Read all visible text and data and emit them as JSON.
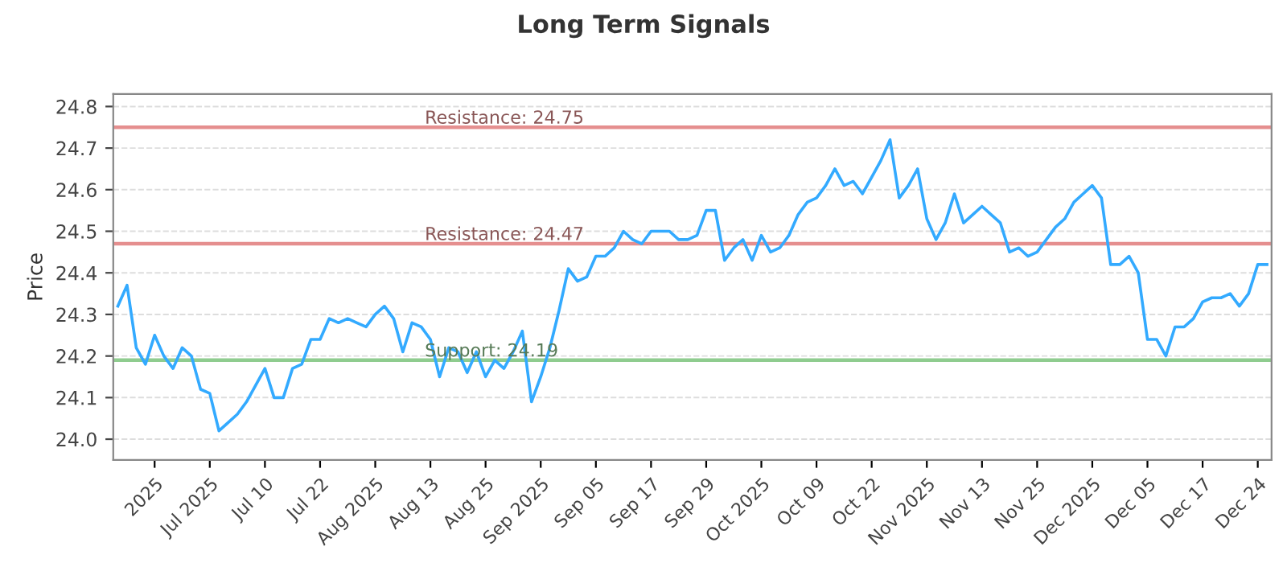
{
  "chart_data": {
    "type": "line",
    "title": "Long Term Signals",
    "ylabel": "Price",
    "categories": [
      null,
      null,
      null,
      null,
      "2025",
      null,
      null,
      null,
      null,
      null,
      "Jul 2025",
      null,
      null,
      null,
      null,
      null,
      "Jul 10",
      null,
      null,
      null,
      null,
      null,
      "Jul 22",
      null,
      null,
      null,
      null,
      null,
      "Aug 2025",
      null,
      null,
      null,
      null,
      null,
      "Aug 13",
      null,
      null,
      null,
      null,
      null,
      "Aug 25",
      null,
      null,
      null,
      null,
      null,
      "Sep 2025",
      null,
      null,
      null,
      null,
      null,
      "Sep 05",
      null,
      null,
      null,
      null,
      null,
      "Sep 17",
      null,
      null,
      null,
      null,
      null,
      "Sep 29",
      null,
      null,
      null,
      null,
      null,
      "Oct 2025",
      null,
      null,
      null,
      null,
      null,
      "Oct 09",
      null,
      null,
      null,
      null,
      null,
      "Oct 22",
      null,
      null,
      null,
      null,
      null,
      "Nov 2025",
      null,
      null,
      null,
      null,
      null,
      "Nov 13",
      null,
      null,
      null,
      null,
      null,
      "Nov 25",
      null,
      null,
      null,
      null,
      null,
      "Dec 2025",
      null,
      null,
      null,
      null,
      null,
      "Dec 05",
      null,
      null,
      null,
      null,
      null,
      "Dec 17",
      null,
      null,
      null,
      null,
      null,
      "Dec 24",
      null
    ],
    "series": [
      {
        "color": "#33aaff",
        "values": [
          24.32,
          24.37,
          24.22,
          24.18,
          24.25,
          24.2,
          24.17,
          24.22,
          24.2,
          24.12,
          24.11,
          24.02,
          24.04,
          24.06,
          24.09,
          24.13,
          24.17,
          24.1,
          24.1,
          24.17,
          24.18,
          24.24,
          24.24,
          24.29,
          24.28,
          24.29,
          24.28,
          24.27,
          24.3,
          24.32,
          24.29,
          24.21,
          24.28,
          24.27,
          24.24,
          24.15,
          24.22,
          24.21,
          24.16,
          24.21,
          24.15,
          24.19,
          24.17,
          24.21,
          24.26,
          24.09,
          24.15,
          24.22,
          24.31,
          24.41,
          24.38,
          24.39,
          24.44,
          24.44,
          24.46,
          24.5,
          24.48,
          24.47,
          24.5,
          24.5,
          24.5,
          24.48,
          24.48,
          24.49,
          24.55,
          24.55,
          24.43,
          24.46,
          24.48,
          24.43,
          24.49,
          24.45,
          24.46,
          24.49,
          24.54,
          24.57,
          24.58,
          24.61,
          24.65,
          24.61,
          24.62,
          24.59,
          24.63,
          24.67,
          24.72,
          24.58,
          24.61,
          24.65,
          24.53,
          24.48,
          24.52,
          24.59,
          24.52,
          24.54,
          24.56,
          24.54,
          24.52,
          24.45,
          24.46,
          24.44,
          24.45,
          24.48,
          24.51,
          24.53,
          24.57,
          24.59,
          24.61,
          24.58,
          24.42,
          24.42,
          24.44,
          24.4,
          24.24,
          24.24,
          24.2,
          24.27,
          24.27,
          24.29,
          24.33,
          24.34,
          24.34,
          24.35,
          24.32,
          24.35,
          24.42,
          24.42
        ]
      }
    ],
    "ylim": [
      23.95,
      24.83
    ],
    "yticks": [
      {
        "value": 24.0,
        "label": "24.0"
      },
      24.1,
      24.2,
      24.3,
      24.4,
      24.5,
      24.6,
      24.7,
      24.8
    ],
    "grid": "y",
    "marker": "none",
    "line_style": "solid",
    "ref_lines": [
      {
        "axis": "y",
        "value": 24.75,
        "label": "Resistance: 24.75",
        "color": "#e58f8f"
      },
      {
        "axis": "y",
        "value": 24.47,
        "label": "Resistance: 24.47",
        "color": "#e58f8f"
      },
      {
        "axis": "y",
        "value": 24.19,
        "label": "Support: 24.19",
        "color": "#8fcc8f"
      }
    ]
  }
}
